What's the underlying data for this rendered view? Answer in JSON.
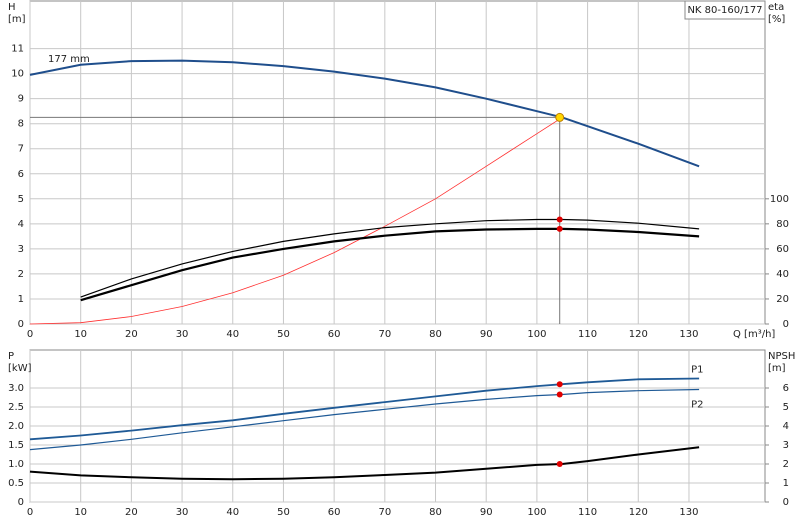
{
  "chart_data": [
    {
      "type": "line",
      "title": "NK 80-160/177",
      "y_label": "H",
      "y_unit": "[m]",
      "y2_label": "eta",
      "y2_unit": "[%]",
      "x_label": "Q [m³/h]",
      "xlim": [
        0,
        145
      ],
      "xticks": [
        0,
        10,
        20,
        30,
        40,
        50,
        60,
        70,
        80,
        90,
        100,
        110,
        120,
        130
      ],
      "ylim": [
        0,
        12.9
      ],
      "yticks": [
        0,
        1,
        2,
        3,
        4,
        5,
        6,
        7,
        8,
        9,
        10,
        11
      ],
      "y2lim": [
        0,
        258
      ],
      "y2ticks": [
        0,
        20,
        40,
        60,
        80,
        100
      ],
      "grid": true,
      "series": [
        {
          "name": "177 mm",
          "color": "#1f4e8c",
          "line_width": 2,
          "x": [
            0,
            10,
            20,
            30,
            40,
            50,
            60,
            70,
            80,
            90,
            100,
            105,
            110,
            120,
            132
          ],
          "values": [
            9.95,
            10.35,
            10.5,
            10.52,
            10.45,
            10.3,
            10.08,
            9.8,
            9.45,
            9.0,
            8.5,
            8.25,
            7.9,
            7.2,
            6.3
          ]
        },
        {
          "color": "#ff3030",
          "line_width": 0.8,
          "x": [
            0,
            10,
            20,
            30,
            40,
            50,
            60,
            70,
            80,
            90,
            100,
            105
          ],
          "values": [
            0,
            0.05,
            0.3,
            0.7,
            1.25,
            1.95,
            2.85,
            3.9,
            5.0,
            6.3,
            7.6,
            8.25
          ]
        },
        {
          "color": "#000000",
          "line_width": 1.2,
          "axis": "y2",
          "x": [
            10,
            20,
            30,
            40,
            50,
            60,
            70,
            80,
            90,
            100,
            105,
            110,
            120,
            132
          ],
          "values": [
            21.5,
            36,
            48,
            58,
            66,
            72,
            77,
            80,
            82.5,
            83.5,
            83.5,
            83,
            80.5,
            76
          ]
        },
        {
          "color": "#000000",
          "line_width": 2.2,
          "axis": "y2",
          "x": [
            10,
            20,
            30,
            40,
            50,
            60,
            70,
            80,
            90,
            100,
            105,
            110,
            120,
            132
          ],
          "values": [
            19,
            31,
            43,
            53,
            60,
            66,
            70.5,
            74,
            75.5,
            76,
            76,
            75.5,
            73.5,
            70
          ]
        }
      ],
      "operating_point": {
        "x": 104.5,
        "y": 8.25,
        "y2": [
          83.5,
          76
        ]
      }
    },
    {
      "type": "line",
      "y_label": "P",
      "y_unit": "[kW]",
      "y2_label": "NPSH",
      "y2_unit": "[m]",
      "xlim": [
        0,
        145
      ],
      "xticks": [
        0,
        10,
        20,
        30,
        40,
        50,
        60,
        70,
        80,
        90,
        100,
        110,
        120,
        130
      ],
      "ylim": [
        0,
        4
      ],
      "yticks": [
        0,
        0.5,
        {
          "value": 1,
          "label": "1.0"
        },
        1.5,
        {
          "value": 2,
          "label": "2.0"
        },
        2.5,
        {
          "value": 3,
          "label": "3.0"
        }
      ],
      "y2lim": [
        0,
        8
      ],
      "y2ticks": [
        0,
        1,
        2,
        3,
        4,
        5,
        6
      ],
      "grid": true,
      "series": [
        {
          "name": "P1",
          "color": "#1f5a96",
          "line_width": 1.8,
          "x": [
            0,
            10,
            20,
            30,
            40,
            50,
            60,
            70,
            80,
            90,
            100,
            105,
            110,
            120,
            132
          ],
          "values": [
            1.65,
            1.75,
            1.88,
            2.02,
            2.15,
            2.32,
            2.48,
            2.63,
            2.78,
            2.93,
            3.05,
            3.1,
            3.15,
            3.23,
            3.25
          ]
        },
        {
          "name": "P2",
          "color": "#1f5a96",
          "line_width": 1.2,
          "x": [
            0,
            10,
            20,
            30,
            40,
            50,
            60,
            70,
            80,
            90,
            100,
            105,
            110,
            120,
            132
          ],
          "values": [
            1.38,
            1.5,
            1.65,
            1.82,
            1.98,
            2.14,
            2.3,
            2.44,
            2.58,
            2.7,
            2.8,
            2.83,
            2.88,
            2.93,
            2.96
          ]
        },
        {
          "color": "#000000",
          "line_width": 2,
          "axis": "y2",
          "x": [
            0,
            10,
            20,
            30,
            40,
            50,
            60,
            70,
            80,
            90,
            100,
            105,
            110,
            120,
            132
          ],
          "values": [
            1.6,
            1.4,
            1.3,
            1.22,
            1.2,
            1.22,
            1.3,
            1.42,
            1.55,
            1.75,
            1.95,
            2.0,
            2.15,
            2.5,
            2.88
          ]
        }
      ],
      "operating_point": {
        "x": 104.5,
        "y": [
          3.1,
          2.83
        ],
        "y2": [
          2.0
        ]
      }
    }
  ]
}
